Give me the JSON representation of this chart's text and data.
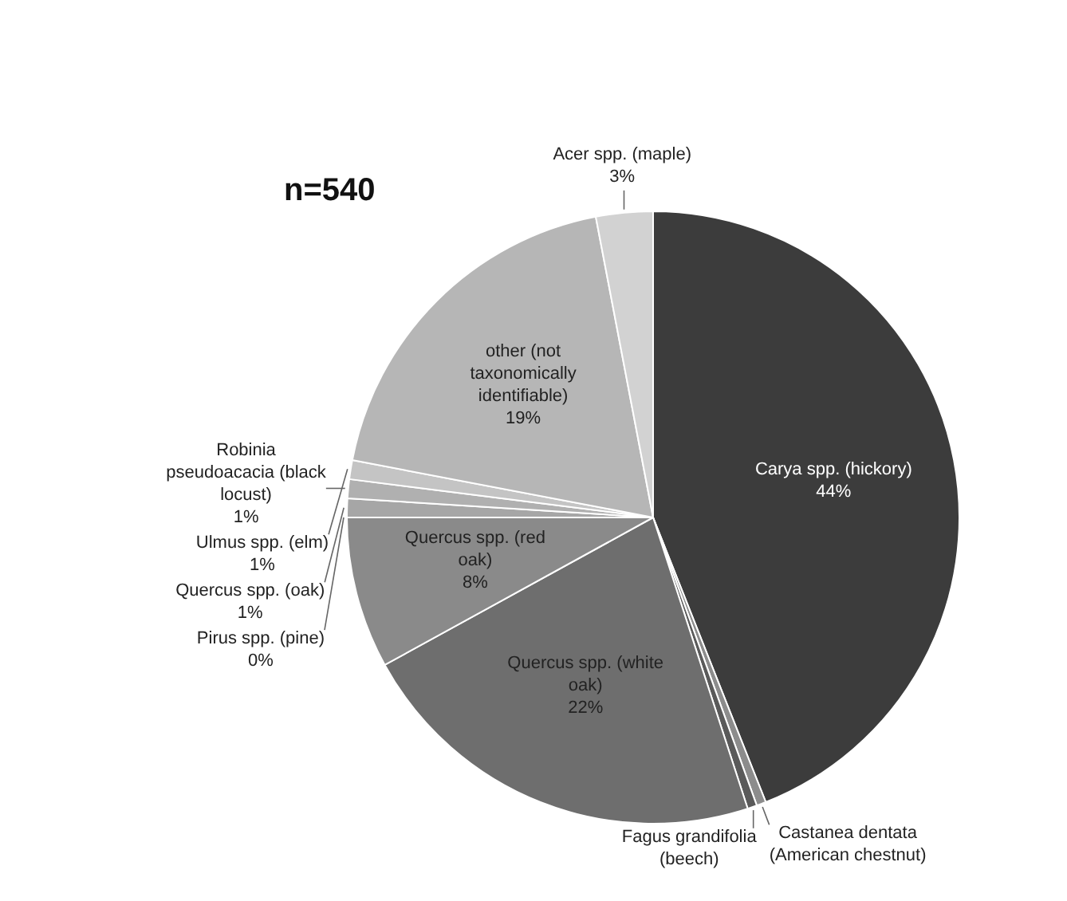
{
  "chart_data": {
    "type": "pie",
    "title": "n=540",
    "categories": [
      "Carya spp. (hickory)",
      "Castanea dentata (American chestnut)",
      "Fagus grandifolia (beech)",
      "Quercus spp. (white oak)",
      "Quercus spp. (red oak)",
      "Pirus spp. (pine)",
      "Quercus spp. (oak)",
      "Robinia pseudoacacia (black locust)",
      "Ulmus spp. (elm)",
      "other (not taxonomically identifiable)",
      "Acer spp. (maple)"
    ],
    "values": [
      44,
      0.5,
      0.5,
      22,
      8,
      0,
      1,
      1,
      1,
      19,
      3
    ],
    "value_labels": [
      "44%",
      null,
      null,
      "22%",
      "8%",
      "0%",
      "1%",
      "1%",
      "1%",
      "19%",
      "3%"
    ],
    "colors": [
      "#3c3c3c",
      "#8c8c8c",
      "#5a5a5a",
      "#6e6e6e",
      "#8a8a8a",
      "#9a9a9a",
      "#a6a6a6",
      "#b0b0b0",
      "#c4c4c4",
      "#b6b6b6",
      "#d2d2d2"
    ],
    "legend": false
  }
}
